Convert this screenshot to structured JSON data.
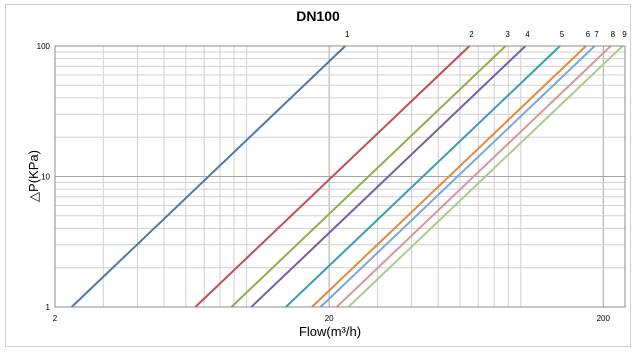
{
  "chart_data": {
    "type": "line",
    "title": "DN100",
    "xlabel": "Flow(m³/h)",
    "ylabel": "△P(KPa)",
    "x_scale": "log",
    "y_scale": "log",
    "xlim": [
      2,
      240
    ],
    "ylim": [
      1,
      100
    ],
    "x_ticks": [
      "2",
      "20",
      "200"
    ],
    "y_ticks": [
      "1",
      "10",
      "100"
    ],
    "grid": true,
    "legend": "none",
    "series": [
      {
        "name": "1",
        "color": "#4e79a7",
        "points": [
          [
            2.3,
            1
          ],
          [
            22.9,
            100
          ]
        ]
      },
      {
        "name": "2",
        "color": "#c0504d",
        "points": [
          [
            6.5,
            1
          ],
          [
            65,
            100
          ]
        ]
      },
      {
        "name": "3",
        "color": "#8db04c",
        "points": [
          [
            8.8,
            1
          ],
          [
            88,
            100
          ]
        ]
      },
      {
        "name": "4",
        "color": "#7560a3",
        "points": [
          [
            10.4,
            1
          ],
          [
            104,
            100
          ]
        ]
      },
      {
        "name": "5",
        "color": "#3a9db5",
        "points": [
          [
            13.9,
            1
          ],
          [
            139,
            100
          ]
        ]
      },
      {
        "name": "6",
        "color": "#e38a3e",
        "points": [
          [
            17.3,
            1
          ],
          [
            173,
            100
          ]
        ]
      },
      {
        "name": "7",
        "color": "#7ea6d8",
        "points": [
          [
            18.6,
            1
          ],
          [
            186,
            100
          ]
        ]
      },
      {
        "name": "8",
        "color": "#d9969a",
        "points": [
          [
            21.3,
            1
          ],
          [
            213,
            100
          ]
        ]
      },
      {
        "name": "9",
        "color": "#a9cc8a",
        "points": [
          [
            23.5,
            1
          ],
          [
            235,
            100
          ]
        ]
      }
    ]
  }
}
